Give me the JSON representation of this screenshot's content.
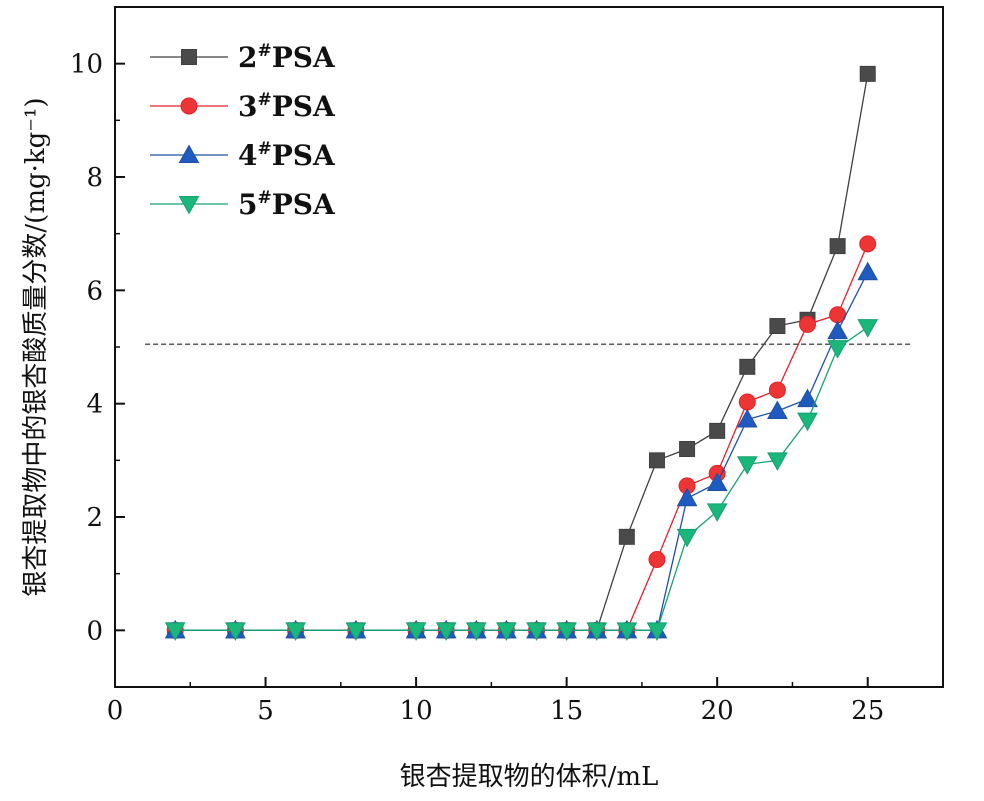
{
  "chart_data": {
    "type": "line",
    "xlabel": "银杏提取物的体积/mL",
    "ylabel": "银杏提取物中的银杏酸质量分数/(mg·kg⁻¹)",
    "xlim": [
      0,
      27.5
    ],
    "ylim": [
      -1,
      11
    ],
    "x_ticks": [
      "0",
      "5",
      "10",
      "15",
      "20",
      "25"
    ],
    "y_ticks": [
      "0",
      "2",
      "4",
      "6",
      "8",
      "10"
    ],
    "reference_line": {
      "y": 5.05,
      "style": "dashed"
    },
    "legend_position": "top-left",
    "x": [
      2,
      4,
      6,
      8,
      10,
      11,
      12,
      13,
      14,
      15,
      16,
      17,
      18,
      19,
      20,
      21,
      22,
      23,
      24,
      25
    ],
    "series": [
      {
        "name_base": "2",
        "name_sup": "#",
        "name_tail": "PSA",
        "color": "#404040",
        "fill": "#4a4a4a",
        "marker": "square",
        "values": [
          0,
          0,
          0,
          0,
          0,
          0,
          0,
          0,
          0,
          0,
          0,
          1.65,
          3.0,
          3.2,
          3.52,
          4.65,
          5.37,
          5.48,
          6.78,
          9.82
        ]
      },
      {
        "name_base": "3",
        "name_sup": "#",
        "name_tail": "PSA",
        "color": "#e8202a",
        "fill": "#ee3535",
        "marker": "circle",
        "values": [
          0,
          0,
          0,
          0,
          0,
          0,
          0,
          0,
          0,
          0,
          0,
          0,
          1.25,
          2.55,
          2.77,
          4.03,
          4.24,
          5.4,
          5.57,
          6.82
        ]
      },
      {
        "name_base": "4",
        "name_sup": "#",
        "name_tail": "PSA",
        "color": "#1e50a8",
        "fill": "#1f5bbf",
        "marker": "triangle-up",
        "values": [
          0,
          0,
          0,
          0,
          0,
          0,
          0,
          0,
          0,
          0,
          0,
          0,
          0,
          2.33,
          2.6,
          3.72,
          3.87,
          4.08,
          5.28,
          6.32
        ]
      },
      {
        "name_base": "5",
        "name_sup": "#",
        "name_tail": "PSA",
        "color": "#16a071",
        "fill": "#19b87a",
        "marker": "triangle-down",
        "values": [
          0,
          0,
          0,
          0,
          0,
          0,
          0,
          0,
          0,
          0,
          0,
          0,
          0,
          1.65,
          2.1,
          2.93,
          3.0,
          3.7,
          4.98,
          5.35
        ]
      }
    ]
  }
}
